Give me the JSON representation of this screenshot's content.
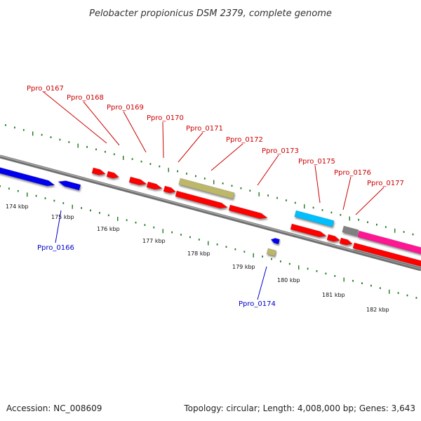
{
  "title": "Pelobacter propionicus DSM 2379, complete genome",
  "footer": {
    "accession": "Accession: NC_008609",
    "summary": "Topology: circular; Length: 4,008,000 bp; Genes: 3,643"
  },
  "colors": {
    "forward_label": "#cc0000",
    "reverse_label": "#0000cc",
    "backbone": "#8c8c8c",
    "tick": "#1a7a1a",
    "red": "#ff0000",
    "blue": "#0000ee",
    "khaki": "#bdb76b",
    "cyan": "#00bfff",
    "gray": "#808080",
    "magenta": "#ff1493"
  },
  "scale_labels": [
    "174 kbp",
    "175 kbp",
    "176 kbp",
    "177 kbp",
    "178 kbp",
    "179 kbp",
    "180 kbp",
    "181 kbp",
    "182 kbp"
  ],
  "forward_labels": [
    "Ppro_0167",
    "Ppro_0168",
    "Ppro_0169",
    "Ppro_0170",
    "Ppro_0171",
    "Ppro_0172",
    "Ppro_0173",
    "Ppro_0175",
    "Ppro_0176",
    "Ppro_0177"
  ],
  "reverse_labels": [
    "Ppro_0166",
    "Ppro_0174"
  ]
}
